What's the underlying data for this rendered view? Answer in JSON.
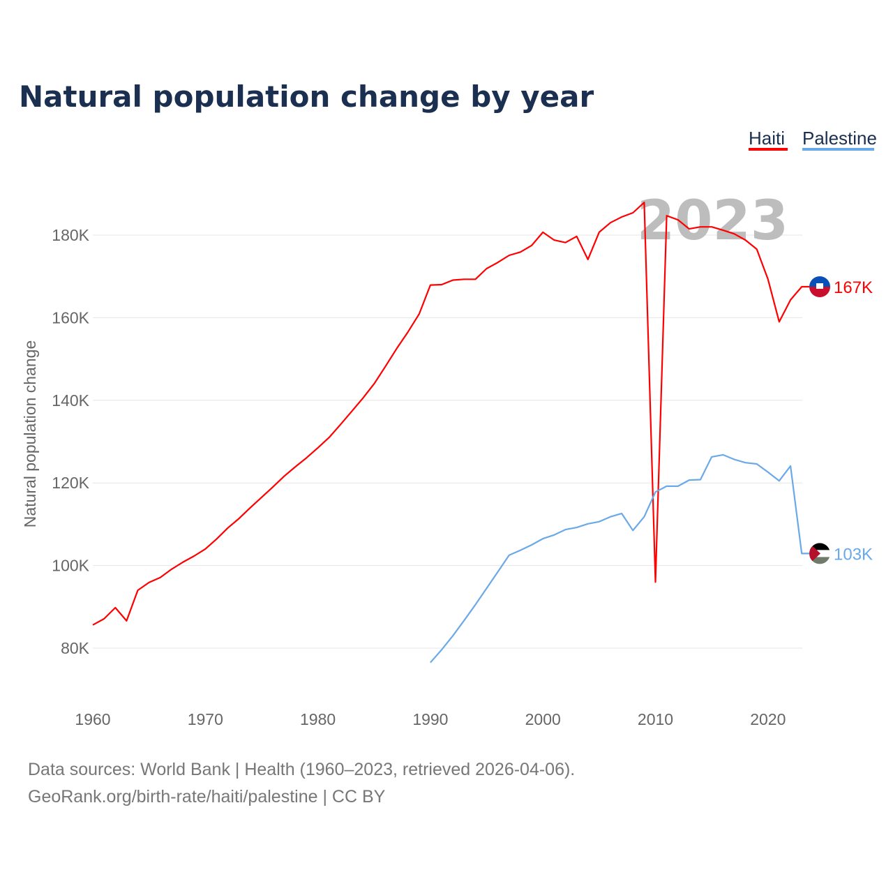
{
  "chart_data": {
    "type": "line",
    "title": "Natural population change by year",
    "ylabel": "Natural population change",
    "xlabel": "",
    "xlim": [
      1960,
      2023
    ],
    "ylim": [
      70000,
      190000
    ],
    "x_ticks": [
      1960,
      1970,
      1980,
      1990,
      2000,
      2010,
      2020
    ],
    "x_tick_labels": [
      "1960",
      "1970",
      "1980",
      "1990",
      "2000",
      "2010",
      "2020"
    ],
    "y_ticks": [
      80000,
      100000,
      120000,
      140000,
      160000,
      180000
    ],
    "y_tick_labels": [
      "80K",
      "100K",
      "120K",
      "140K",
      "160K",
      "180K"
    ],
    "grid": true,
    "legend_position": "top-right",
    "current_year_label": "2023",
    "series": [
      {
        "name": "Haiti",
        "color": "#ff0000",
        "end_label": "167K",
        "flag": "haiti-flag",
        "start_year": 1960,
        "values": [
          85600,
          87100,
          89800,
          86600,
          94000,
          95900,
          97100,
          99100,
          100800,
          102300,
          104000,
          106400,
          109100,
          111400,
          114000,
          116500,
          119000,
          121600,
          123900,
          126100,
          128500,
          131000,
          134100,
          137300,
          140500,
          144000,
          148200,
          152500,
          156500,
          160900,
          167900,
          168000,
          169100,
          169300,
          169300,
          171900,
          173400,
          175100,
          175900,
          177500,
          180700,
          178800,
          178200,
          179700,
          174100,
          180700,
          183000,
          184400,
          185400,
          187900,
          96000,
          184700,
          183700,
          181500,
          182000,
          182000,
          181200,
          180300,
          178800,
          176600,
          169300,
          159000,
          164300,
          167500
        ]
      },
      {
        "name": "Palestine",
        "color": "#6aa9e9",
        "end_label": "103K",
        "flag": "palestine-flag",
        "start_year": 1990,
        "values": [
          76500,
          79600,
          83000,
          86700,
          90500,
          94500,
          98500,
          102500,
          103700,
          105000,
          106500,
          107400,
          108700,
          109200,
          110100,
          110600,
          111800,
          112600,
          108500,
          111800,
          117800,
          119200,
          119200,
          120700,
          120800,
          126300,
          126800,
          125700,
          124900,
          124600,
          122600,
          120500,
          124100,
          102900
        ]
      }
    ]
  },
  "footer": {
    "line1": "Data sources: World Bank | Health (1960–2023, retrieved 2026-04-06).",
    "line2": "GeoRank.org/birth-rate/haiti/palestine | CC BY"
  }
}
